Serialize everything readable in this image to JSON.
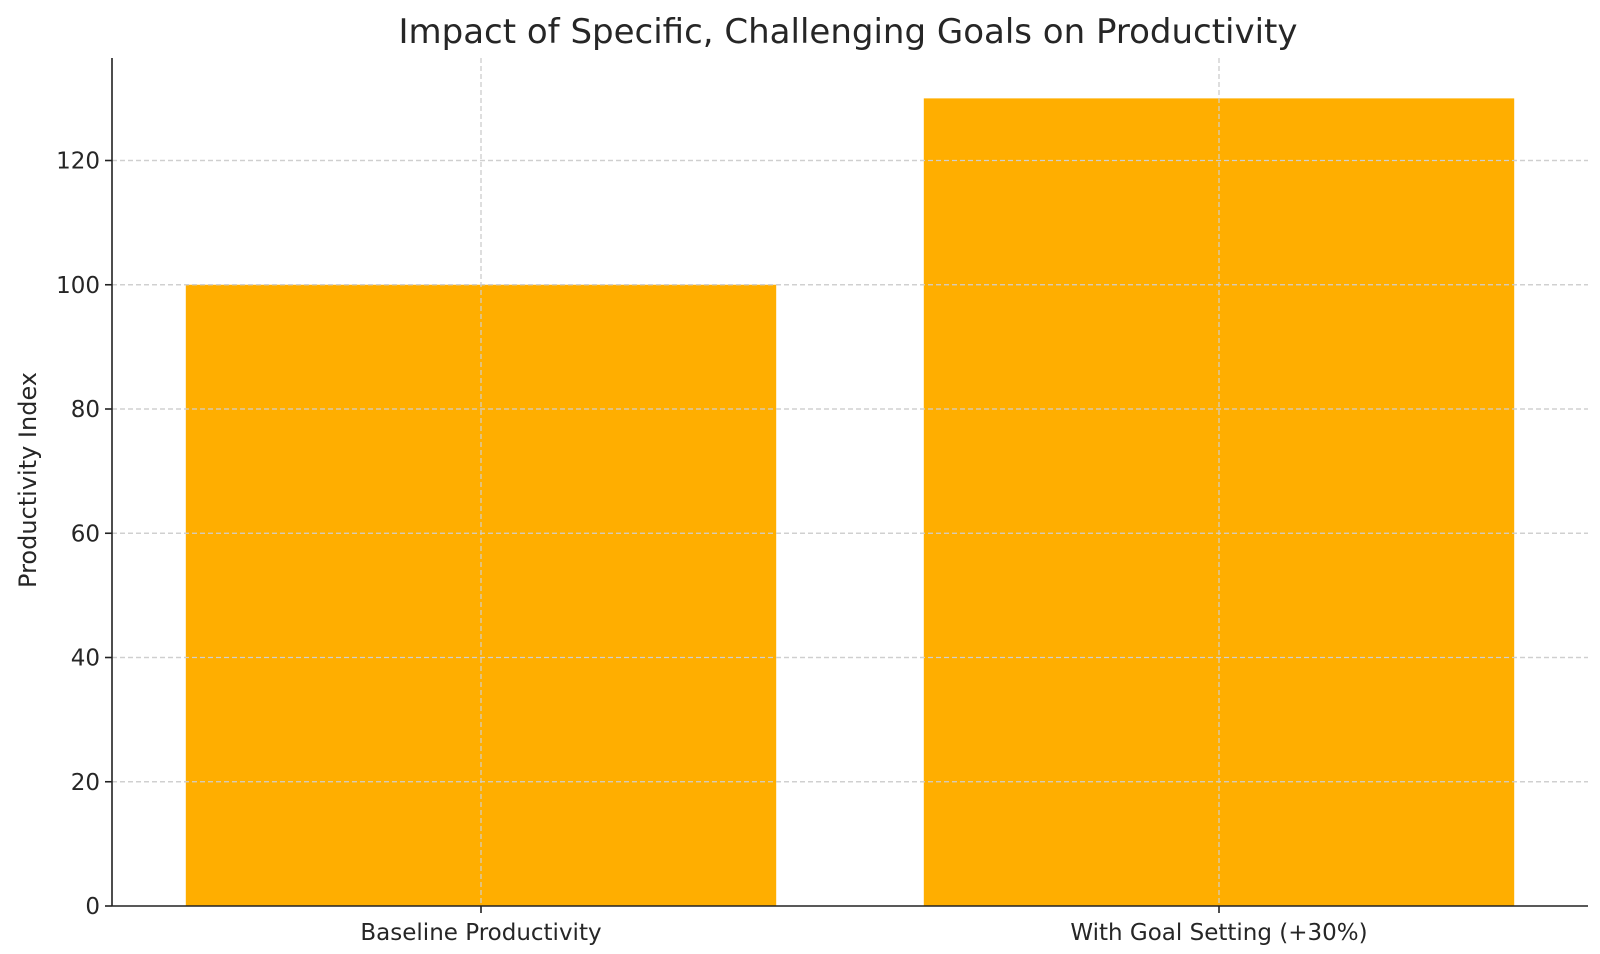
{
  "chart_data": {
    "type": "bar",
    "title": "Impact of Specific, Challenging Goals on Productivity",
    "xlabel": "",
    "ylabel": "Productivity Index",
    "categories": [
      "Baseline Productivity",
      "With Goal Setting (+30%)"
    ],
    "values": [
      100,
      130
    ],
    "ylim": [
      0,
      136.5
    ],
    "yticks": [
      0,
      20,
      40,
      60,
      80,
      100,
      120
    ],
    "grid": true,
    "bar_color": "#FFAE00"
  }
}
